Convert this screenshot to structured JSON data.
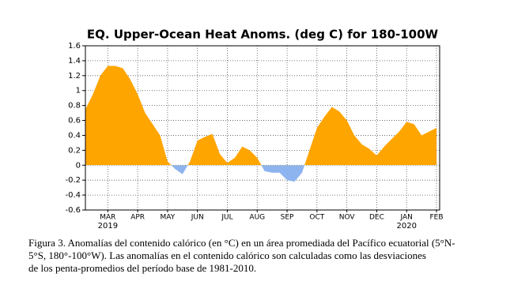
{
  "chart_data": {
    "type": "area",
    "title": "EQ. Upper-Ocean Heat Anoms. (deg C) for 180-100W",
    "categories": [
      null,
      null,
      null,
      "MAR",
      null,
      null,
      null,
      "APR",
      null,
      null,
      null,
      "MAY",
      null,
      null,
      null,
      "JUN",
      null,
      null,
      null,
      "JUL",
      null,
      null,
      null,
      "AUG",
      null,
      null,
      null,
      "SEP",
      null,
      null,
      null,
      "OCT",
      null,
      null,
      null,
      "NOV",
      null,
      null,
      null,
      "DEC",
      null,
      null,
      null,
      "JAN",
      null,
      null,
      null,
      "FEB"
    ],
    "year_labels": [
      null,
      null,
      null,
      "2019",
      null,
      null,
      null,
      null,
      null,
      null,
      null,
      null,
      null,
      null,
      null,
      null,
      null,
      null,
      null,
      null,
      null,
      null,
      null,
      null,
      null,
      null,
      null,
      null,
      null,
      null,
      null,
      null,
      null,
      null,
      null,
      null,
      null,
      null,
      null,
      null,
      null,
      null,
      null,
      "2020",
      null,
      null,
      null,
      null
    ],
    "values": [
      0.75,
      0.95,
      1.2,
      1.33,
      1.33,
      1.3,
      1.15,
      0.95,
      0.7,
      0.55,
      0.4,
      0.05,
      -0.05,
      -0.12,
      0.05,
      0.33,
      0.38,
      0.42,
      0.15,
      0.03,
      0.1,
      0.25,
      0.2,
      0.1,
      -0.08,
      -0.1,
      -0.1,
      -0.2,
      -0.22,
      -0.1,
      0.2,
      0.5,
      0.65,
      0.78,
      0.72,
      0.6,
      0.4,
      0.28,
      0.22,
      0.13,
      0.25,
      0.35,
      0.45,
      0.58,
      0.55,
      0.4,
      0.45,
      0.5
    ],
    "positive_color": "#ffa500",
    "negative_color": "#8db4ef",
    "ylim": [
      -0.6,
      1.6
    ],
    "yticks": [
      -0.6,
      -0.4,
      -0.2,
      0,
      0.2,
      0.4,
      0.6,
      0.8,
      1,
      1.2,
      1.4,
      1.6
    ],
    "grid": true
  },
  "caption": [
    "Figura 3. Anomalías del contenido calórico (en °C) en un área promediada del Pacífico ecuatorial (5°N-",
    "5°S, 180°-100°W). Las anomalías en el contenido calórico son calculadas como las desviaciones",
    "de los penta-promedios del período base de 1981-2010."
  ]
}
